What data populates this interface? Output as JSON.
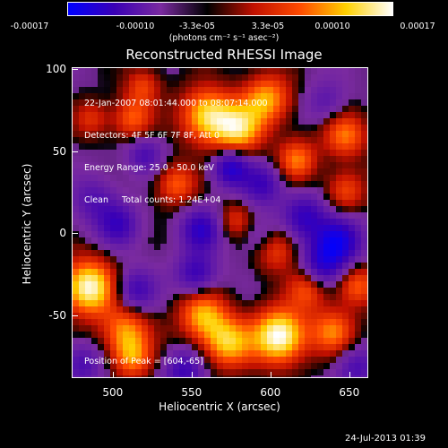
{
  "colorbar": {
    "tick_labels": [
      "-0.00017",
      "-0.00010",
      "-3.3e-05",
      "3.3e-05",
      "0.00010",
      "0.00017"
    ],
    "units": "(photons cm⁻² s⁻¹ asec⁻²)"
  },
  "title": "Reconstructed RHESSI Image",
  "info_lines": [
    "22-Jan-2007 08:01:44.000 to 08:07:14.000",
    "Detectors: 4F 5F 6F 7F 8F, Att 0",
    "Energy Range: 25.0 - 50.0 keV",
    "Clean     Total counts: 1.24E+04"
  ],
  "peak_text": "Position of Peak = [604,-65]",
  "footer": "24-Jul-2013 01:39",
  "chart_data": {
    "type": "heatmap",
    "title": "Reconstructed RHESSI Image",
    "xlabel": "Heliocentric X (arcsec)",
    "ylabel": "Heliocentric Y (arcsec)",
    "xlim": [
      474,
      662
    ],
    "ylim": [
      -88,
      101
    ],
    "x_ticks": [
      500,
      550,
      600,
      650
    ],
    "y_ticks": [
      100,
      50,
      0,
      -50
    ],
    "colorbar_range": [
      -0.00017,
      0.00017
    ],
    "colormap": [
      "#0000ff",
      "#3a00b5",
      "#7a2aa0",
      "#000000",
      "#c01000",
      "#ff4a00",
      "#ffd000",
      "#ffffff"
    ],
    "peak": [
      604,
      -65
    ],
    "sources": [
      {
        "x": 606,
        "y": -63,
        "a": 1.0,
        "r": 12
      },
      {
        "x": 484,
        "y": -33,
        "a": 0.95,
        "r": 12
      },
      {
        "x": 573,
        "y": -67,
        "a": 0.7,
        "r": 11
      },
      {
        "x": 557,
        "y": -50,
        "a": 0.65,
        "r": 11
      },
      {
        "x": 508,
        "y": -60,
        "a": 0.6,
        "r": 11
      },
      {
        "x": 512,
        "y": -77,
        "a": 0.5,
        "r": 9
      },
      {
        "x": 640,
        "y": -60,
        "a": 0.55,
        "r": 10
      },
      {
        "x": 655,
        "y": -32,
        "a": 0.5,
        "r": 9
      },
      {
        "x": 624,
        "y": -34,
        "a": 0.45,
        "r": 9
      },
      {
        "x": 602,
        "y": -8,
        "a": 0.6,
        "r": 10
      },
      {
        "x": 560,
        "y": 72,
        "a": 0.8,
        "r": 12
      },
      {
        "x": 580,
        "y": 63,
        "a": 0.7,
        "r": 11
      },
      {
        "x": 598,
        "y": 82,
        "a": 0.65,
        "r": 11
      },
      {
        "x": 617,
        "y": 45,
        "a": 0.55,
        "r": 9
      },
      {
        "x": 512,
        "y": 70,
        "a": 0.5,
        "r": 9
      },
      {
        "x": 540,
        "y": 30,
        "a": 0.5,
        "r": 9
      },
      {
        "x": 648,
        "y": 60,
        "a": 0.55,
        "r": 10
      },
      {
        "x": 648,
        "y": 26,
        "a": 0.45,
        "r": 9
      },
      {
        "x": 486,
        "y": 70,
        "a": 0.35,
        "r": 8
      },
      {
        "x": 519,
        "y": 90,
        "a": 0.4,
        "r": 8
      },
      {
        "x": 578,
        "y": 8,
        "a": 0.35,
        "r": 8
      },
      {
        "x": 488,
        "y": 20,
        "a": -0.35,
        "r": 10
      },
      {
        "x": 575,
        "y": 40,
        "a": -0.7,
        "r": 8
      },
      {
        "x": 556,
        "y": 2,
        "a": -0.6,
        "r": 9
      },
      {
        "x": 595,
        "y": -3,
        "a": -0.45,
        "r": 9
      },
      {
        "x": 622,
        "y": 10,
        "a": -0.55,
        "r": 10
      },
      {
        "x": 643,
        "y": -5,
        "a": -0.9,
        "r": 10
      },
      {
        "x": 553,
        "y": -25,
        "a": -0.55,
        "r": 9
      },
      {
        "x": 514,
        "y": -35,
        "a": -0.5,
        "r": 9
      },
      {
        "x": 503,
        "y": 5,
        "a": -0.5,
        "r": 9
      },
      {
        "x": 595,
        "y": 30,
        "a": -0.5,
        "r": 9
      },
      {
        "x": 633,
        "y": -20,
        "a": -0.55,
        "r": 9
      },
      {
        "x": 480,
        "y": -80,
        "a": -0.4,
        "r": 9
      },
      {
        "x": 545,
        "y": -84,
        "a": -0.5,
        "r": 9
      },
      {
        "x": 655,
        "y": -82,
        "a": -0.4,
        "r": 9
      },
      {
        "x": 636,
        "y": 80,
        "a": -0.3,
        "r": 9
      },
      {
        "x": 520,
        "y": 48,
        "a": -0.4,
        "r": 8
      }
    ]
  }
}
